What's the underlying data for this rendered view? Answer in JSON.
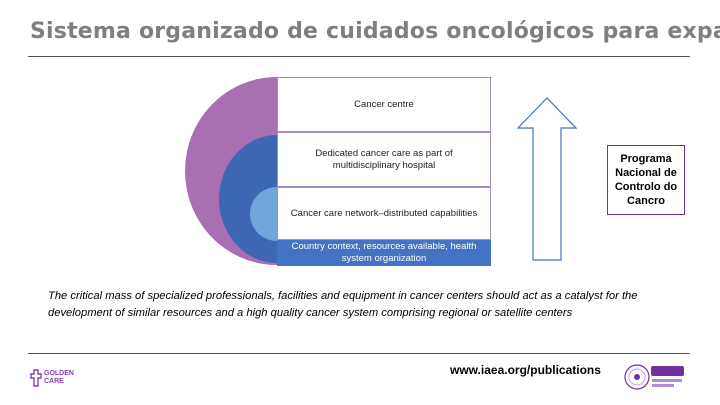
{
  "slide": {
    "title": "Sistema organizado de cuidados oncológicos para expandir o acesso",
    "diagram": {
      "layers": [
        "Cancer centre",
        "Dedicated cancer care as part of multidisciplinary hospital",
        "Cancer care network–distributed capabilities",
        "Country context, resources available, health system organization"
      ],
      "colors": {
        "outer": "#a86fb3",
        "middle": "#3d66b3",
        "inner": "#6fa6dc",
        "base": "#4472c4",
        "box_border": "#a68cc4",
        "arrow": "#4472c4"
      }
    },
    "program_box": "Programa Nacional de Controlo do Cancro",
    "caption": "The critical mass of specialized professionals, facilities and equipment in cancer centers should act as a catalyst for the development of similar resources and a high quality cancer system comprising regional or satellite centers",
    "footer": {
      "logo_line1": "GOLDEN",
      "logo_line2": "CARE",
      "url": "www.iaea.org/publications"
    }
  }
}
